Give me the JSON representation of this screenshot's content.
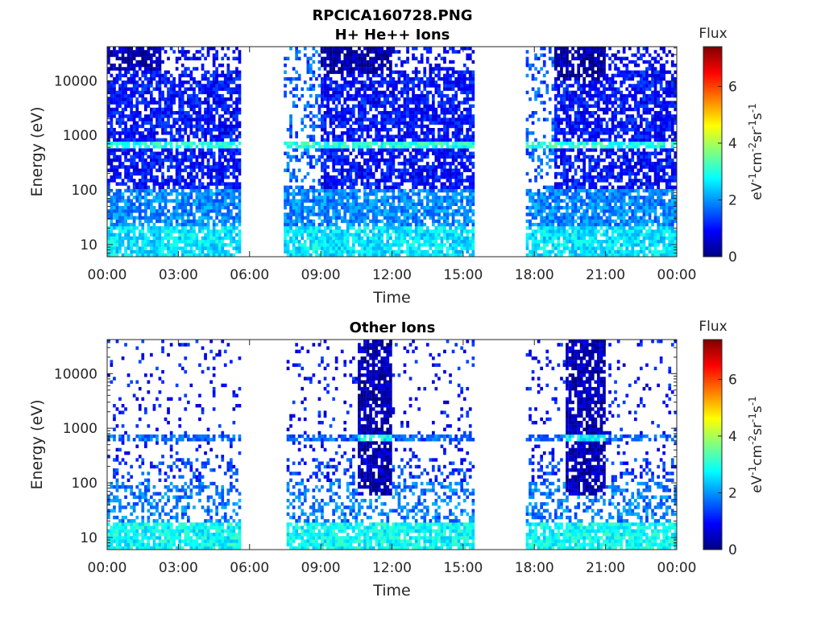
{
  "chart_data": [
    {
      "type": "heatmap",
      "title_lines": [
        "RPCICA160728.PNG",
        "H+ He++ Ions"
      ],
      "xlabel": "Time",
      "ylabel": "Energy (eV)",
      "x_unit": "hours",
      "xlim": [
        0,
        24
      ],
      "ylim": [
        6,
        42000
      ],
      "yscale": "log",
      "xticks": [
        0,
        3,
        6,
        9,
        12,
        15,
        18,
        21,
        24
      ],
      "xtick_labels": [
        "00:00",
        "03:00",
        "06:00",
        "09:00",
        "12:00",
        "15:00",
        "18:00",
        "21:00",
        "00:00"
      ],
      "yticks": [
        10,
        100,
        1000,
        10000
      ],
      "ytick_labels": [
        "10",
        "100",
        "1000",
        "10000"
      ],
      "colorbar": {
        "title": "Flux",
        "range": [
          0,
          7.4
        ],
        "ticks": [
          0,
          2,
          4,
          6
        ],
        "tick_labels": [
          "0",
          "2",
          "4",
          "6"
        ],
        "colormap": "jet",
        "label_parts": [
          "eV",
          "-1",
          "cm",
          "-2",
          "sr",
          "-1",
          "s",
          "-1"
        ]
      },
      "data_segments": [
        [
          0,
          5.6
        ],
        [
          7.5,
          15.5
        ],
        [
          17.6,
          24
        ]
      ],
      "features": [
        {
          "t": [
            0,
            24
          ],
          "e": [
            6,
            42000
          ],
          "flux": 1.0,
          "density": 0.75
        },
        {
          "t": [
            7.5,
            9.0
          ],
          "e": [
            6,
            42000
          ],
          "flux": 1.6,
          "density": 0.3
        },
        {
          "t": [
            17.6,
            18.8
          ],
          "e": [
            6,
            42000
          ],
          "flux": 1.6,
          "density": 0.3
        },
        {
          "t": [
            0,
            24
          ],
          "e": [
            6,
            100
          ],
          "flux": 1.9,
          "density": 0.8
        },
        {
          "t": [
            0,
            24
          ],
          "e": [
            6,
            22
          ],
          "flux": 2.6,
          "density": 0.85
        },
        {
          "t": [
            0,
            24
          ],
          "e": [
            560,
            780
          ],
          "flux": 3.0,
          "density": 0.8
        },
        {
          "t": [
            0,
            2.3
          ],
          "e": [
            15000,
            42000
          ],
          "flux": 0.3,
          "density": 0.8
        },
        {
          "t": [
            2.3,
            5.6
          ],
          "e": [
            15000,
            42000
          ],
          "flux": 0.9,
          "density": 0.35
        },
        {
          "t": [
            9.0,
            12.0
          ],
          "e": [
            14000,
            42000
          ],
          "flux": 0.3,
          "density": 0.8
        },
        {
          "t": [
            12.0,
            15.5
          ],
          "e": [
            15000,
            42000
          ],
          "flux": 0.9,
          "density": 0.3
        },
        {
          "t": [
            18.8,
            21.0
          ],
          "e": [
            10000,
            42000
          ],
          "flux": 0.3,
          "density": 0.8
        },
        {
          "t": [
            21.0,
            24
          ],
          "e": [
            15000,
            42000
          ],
          "flux": 0.9,
          "density": 0.35
        }
      ]
    },
    {
      "type": "heatmap",
      "title_lines": [
        "Other Ions"
      ],
      "xlabel": "Time",
      "ylabel": "Energy (eV)",
      "x_unit": "hours",
      "xlim": [
        0,
        24
      ],
      "ylim": [
        6,
        42000
      ],
      "yscale": "log",
      "xticks": [
        0,
        3,
        6,
        9,
        12,
        15,
        18,
        21,
        24
      ],
      "xtick_labels": [
        "00:00",
        "03:00",
        "06:00",
        "09:00",
        "12:00",
        "15:00",
        "18:00",
        "21:00",
        "00:00"
      ],
      "yticks": [
        10,
        100,
        1000,
        10000
      ],
      "ytick_labels": [
        "10",
        "100",
        "1000",
        "10000"
      ],
      "colorbar": {
        "title": "Flux",
        "range": [
          0,
          7.4
        ],
        "ticks": [
          0,
          2,
          4,
          6
        ],
        "tick_labels": [
          "0",
          "2",
          "4",
          "6"
        ],
        "colormap": "jet",
        "label_parts": [
          "eV",
          "-1",
          "cm",
          "-2",
          "sr",
          "-1",
          "s",
          "-1"
        ]
      },
      "data_segments": [
        [
          0,
          5.6
        ],
        [
          7.6,
          15.5
        ],
        [
          17.6,
          24
        ]
      ],
      "features": [
        {
          "t": [
            0,
            24
          ],
          "e": [
            6,
            42000
          ],
          "flux": 1.0,
          "density": 0.1
        },
        {
          "t": [
            0,
            24
          ],
          "e": [
            100,
            300
          ],
          "flux": 1.3,
          "density": 0.3
        },
        {
          "t": [
            0,
            24
          ],
          "e": [
            20,
            100
          ],
          "flux": 1.8,
          "density": 0.4
        },
        {
          "t": [
            0,
            24
          ],
          "e": [
            6,
            20
          ],
          "flux": 2.8,
          "density": 0.85
        },
        {
          "t": [
            0,
            24
          ],
          "e": [
            580,
            760
          ],
          "flux": 1.6,
          "density": 0.75
        },
        {
          "t": [
            10.5,
            12.0
          ],
          "e": [
            60,
            42000
          ],
          "flux": 0.4,
          "density": 0.8
        },
        {
          "t": [
            19.3,
            21.0
          ],
          "e": [
            60,
            42000
          ],
          "flux": 0.4,
          "density": 0.8
        },
        {
          "t": [
            10.5,
            12.0
          ],
          "e": [
            580,
            720
          ],
          "flux": 2.8,
          "density": 0.8
        },
        {
          "t": [
            19.3,
            21.0
          ],
          "e": [
            620,
            760
          ],
          "flux": 2.8,
          "density": 0.8
        }
      ]
    }
  ]
}
